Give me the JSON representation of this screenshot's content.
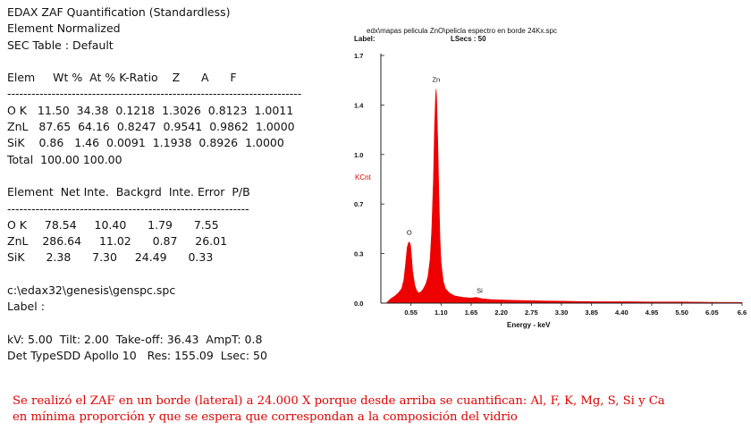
{
  "report": {
    "lines": [
      "EDAX ZAF Quantification (Standardless)",
      "Element Normalized",
      "SEC Table : Default",
      "",
      "Elem     Wt %  At % K-Ratio    Z      A      F",
      "-------------------------------------------------------------------------",
      "O K   11.50  34.38  0.1218  1.3026  0.8123  1.0011",
      "ZnL   87.65  64.16  0.8247  0.9541  0.9862  1.0000",
      "SiK    0.86   1.46  0.0091  1.1938  0.8926  1.0000",
      "Total  100.00 100.00",
      "",
      "Element  Net Inte.  Backgrd  Inte. Error  P/B",
      "------------------------------------------------------------",
      "O K     78.54     10.40      1.79      7.55",
      "ZnL    286.64     11.02      0.87     26.01",
      "SiK      2.38      7.30     24.49      0.33",
      "",
      "c:\\edax32\\genesis\\genspc.spc",
      "Label :",
      "",
      "kV: 5.00  Tilt: 2.00  Take-off: 36.43  AmpT: 0.8",
      "Det TypeSDD Apollo 10   Res: 155.09  Lsec: 50"
    ]
  },
  "caption": {
    "line1": "Se realizó el ZAF en un borde (lateral) a 24.000 X porque desde arriba se cuantifican: Al, F, K, Mg, S, Si y Ca",
    "line2": "en mínima proporción y que se espera que correspondan a la composición del vidrio"
  },
  "chart_data": {
    "type": "area",
    "title": "edx\\mapas pelicula ZnO\\pelicla espectro en borde 24Kx.spc",
    "label_text": "Label:",
    "lsecs_text": "LSecs : 50",
    "xlabel": "Energy - keV",
    "ylabel": "KCnt",
    "x_ticks": [
      "0.55",
      "1.10",
      "1.65",
      "2.20",
      "2.75",
      "3.30",
      "3.85",
      "4.40",
      "4.95",
      "5.50",
      "6.05",
      "6.6"
    ],
    "y_ticks": [
      "0.0",
      "0.3",
      "0.7",
      "1.0",
      "1.4",
      "1.7"
    ],
    "xlim": [
      0.0,
      6.6
    ],
    "ylim": [
      0.0,
      1.7
    ],
    "fill_color": "#ee0000",
    "peaks": [
      {
        "label": "O",
        "energy": 0.52,
        "kcnt": 0.42
      },
      {
        "label": "Zn",
        "energy": 1.01,
        "kcnt": 1.47
      },
      {
        "label": "Si",
        "energy": 1.74,
        "kcnt": 0.02
      }
    ],
    "series": [
      {
        "x": [
          0.1,
          0.18,
          0.26,
          0.32,
          0.38,
          0.42,
          0.45,
          0.48,
          0.5,
          0.52,
          0.54,
          0.56,
          0.58,
          0.62,
          0.66,
          0.7,
          0.74,
          0.78,
          0.82,
          0.86,
          0.9,
          0.93,
          0.96,
          0.98,
          1.0,
          1.01,
          1.02,
          1.04,
          1.06,
          1.08,
          1.1,
          1.14,
          1.18,
          1.25,
          1.35,
          1.5,
          1.65,
          1.74,
          1.85,
          2.0,
          2.3,
          2.6,
          3.0,
          3.5,
          4.0,
          4.5,
          5.0,
          5.5,
          6.0,
          6.6
        ],
        "y": [
          0.0,
          0.03,
          0.05,
          0.07,
          0.1,
          0.16,
          0.26,
          0.38,
          0.41,
          0.42,
          0.4,
          0.32,
          0.22,
          0.12,
          0.08,
          0.07,
          0.08,
          0.1,
          0.13,
          0.18,
          0.3,
          0.5,
          0.85,
          1.2,
          1.42,
          1.47,
          1.4,
          1.1,
          0.75,
          0.45,
          0.28,
          0.15,
          0.1,
          0.07,
          0.05,
          0.04,
          0.035,
          0.04,
          0.03,
          0.025,
          0.02,
          0.018,
          0.015,
          0.012,
          0.01,
          0.01,
          0.008,
          0.008,
          0.006,
          0.005
        ]
      }
    ]
  }
}
